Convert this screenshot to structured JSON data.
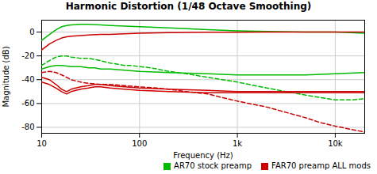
{
  "chart_data": {
    "type": "line",
    "title": "Harmonic Distortion (1/48 Octave Smoothing)",
    "xlabel": "Frequency (Hz)",
    "ylabel": "Magnitude (dB)",
    "log": "x",
    "xlim": [
      10,
      20000
    ],
    "xticks": [
      10,
      100,
      {
        "value": 1000,
        "label": "1k"
      },
      {
        "value": 10000,
        "label": "10k"
      }
    ],
    "ylim": [
      -85,
      10
    ],
    "yticks": [
      0,
      -20,
      -40,
      -60,
      -80
    ],
    "grid": true,
    "legend": "lower right",
    "series": [
      {
        "name": "AR70 stock preamp",
        "color": "#00bb00",
        "line_style": "solid",
        "x": [
          10,
          12,
          14,
          16,
          18,
          20,
          25,
          30,
          40,
          50,
          70,
          100,
          200,
          500,
          1000,
          2000,
          5000,
          10000,
          20000
        ],
        "values": [
          -7,
          -2,
          2,
          4.5,
          5.5,
          6,
          6.5,
          6.5,
          6,
          5.5,
          5,
          4.5,
          3.5,
          2,
          1,
          0.5,
          0,
          0,
          -1
        ]
      },
      {
        "name": "FAR70 preamp ALL mods",
        "color": "#cc0000",
        "line_style": "solid",
        "x": [
          10,
          12,
          14,
          16,
          18,
          20,
          25,
          30,
          40,
          50,
          70,
          100,
          200,
          500,
          1000,
          2000,
          5000,
          10000,
          20000
        ],
        "values": [
          -15,
          -10,
          -7,
          -5,
          -4,
          -3.5,
          -3,
          -2.5,
          -2,
          -2,
          -1.5,
          -1,
          -0.5,
          -0.2,
          -0.1,
          0,
          0,
          0,
          0
        ]
      },
      {
        "name": "AR70 stock preamp",
        "color": "#00bb00",
        "line_style": "dashed",
        "x": [
          10,
          12,
          14,
          16,
          18,
          20,
          25,
          30,
          35,
          40,
          50,
          60,
          70,
          80,
          100,
          130,
          150,
          200,
          300,
          500,
          700,
          1000,
          2000,
          5000,
          7000,
          10000,
          15000,
          20000
        ],
        "values": [
          -28,
          -24,
          -21,
          -20,
          -20,
          -21,
          -22,
          -22,
          -23,
          -24,
          -26,
          -27,
          -28,
          -28,
          -29,
          -30,
          -31,
          -33,
          -35,
          -38,
          -40,
          -42,
          -47,
          -53,
          -55,
          -57,
          -57,
          -56
        ]
      },
      {
        "name": "AR70 stock preamp",
        "color": "#00bb00",
        "line_style": "solid",
        "x": [
          10,
          12,
          14,
          16,
          18,
          20,
          25,
          30,
          35,
          40,
          50,
          70,
          100,
          200,
          500,
          1000,
          2000,
          5000,
          10000,
          20000
        ],
        "values": [
          -31,
          -29,
          -28,
          -28,
          -28.5,
          -29,
          -29,
          -30,
          -30,
          -31,
          -31,
          -32,
          -33,
          -34,
          -35,
          -36,
          -36,
          -36,
          -35,
          -34
        ]
      },
      {
        "name": "FAR70 preamp ALL mods",
        "color": "#cc0000",
        "line_style": "dashed",
        "x": [
          10,
          12,
          14,
          16,
          18,
          20,
          25,
          30,
          40,
          50,
          70,
          100,
          150,
          200,
          300,
          500,
          700,
          1000,
          2000,
          3000,
          5000,
          7000,
          10000,
          15000,
          20000
        ],
        "values": [
          -34,
          -33,
          -34,
          -36,
          -38,
          -40,
          -42,
          -43,
          -44,
          -44,
          -45,
          -46,
          -47,
          -48,
          -50,
          -52,
          -55,
          -58,
          -63,
          -67,
          -72,
          -76,
          -79,
          -82,
          -84
        ]
      },
      {
        "name": "FAR70 preamp ALL mods",
        "color": "#cc0000",
        "line_style": "solid",
        "x": [
          10,
          12,
          14,
          16,
          18,
          20,
          25,
          30,
          35,
          40,
          50,
          70,
          100,
          200,
          500,
          1000,
          2000,
          5000,
          10000,
          20000
        ],
        "values": [
          -38,
          -40,
          -44,
          -48,
          -50,
          -48,
          -46,
          -45,
          -44,
          -44,
          -45,
          -46,
          -47,
          -48,
          -49,
          -50,
          -50,
          -50,
          -50,
          -50
        ]
      },
      {
        "name": "FAR70 preamp ALL mods",
        "color": "#cc0000",
        "line_style": "solid",
        "x": [
          10,
          12,
          14,
          16,
          18,
          20,
          25,
          30,
          35,
          40,
          50,
          70,
          100,
          200,
          500,
          1000,
          2000,
          5000,
          10000,
          20000
        ],
        "values": [
          -42,
          -44,
          -47,
          -50,
          -52,
          -50,
          -48,
          -47,
          -46,
          -46,
          -47,
          -48,
          -49,
          -50,
          -51,
          -51,
          -51,
          -51,
          -51,
          -51
        ]
      }
    ]
  }
}
